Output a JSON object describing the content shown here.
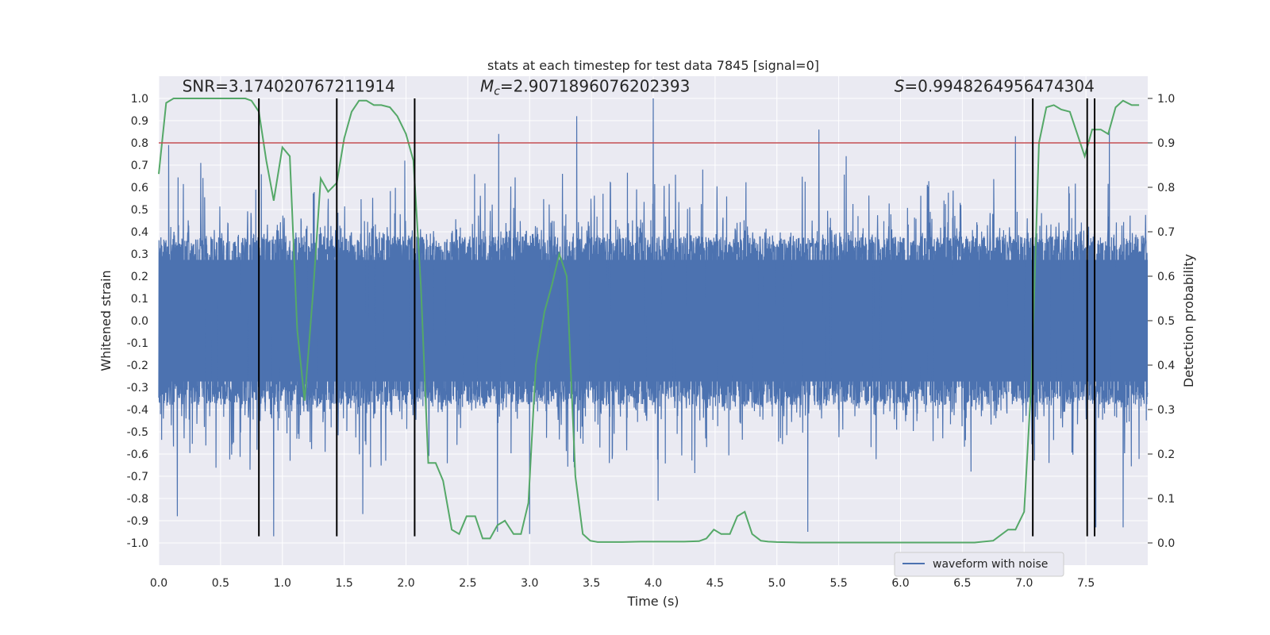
{
  "chart_data": {
    "type": "line",
    "title": "stats at each timestep for test data 7845 [signal=0]",
    "xlabel": "Time (s)",
    "ylabel": "Whitened strain",
    "y2label": "Detection probability",
    "xlim": [
      0,
      8
    ],
    "ylim": [
      -1.1,
      1.1
    ],
    "y2lim": [
      -0.05,
      1.05
    ],
    "xticks": [
      0.0,
      0.5,
      1.0,
      1.5,
      2.0,
      2.5,
      3.0,
      3.5,
      4.0,
      4.5,
      5.0,
      5.5,
      6.0,
      6.5,
      7.0,
      7.5
    ],
    "yticks": [
      -1.0,
      -0.9,
      -0.8,
      -0.7,
      -0.6,
      -0.5,
      -0.4,
      -0.3,
      -0.2,
      -0.1,
      0.0,
      0.1,
      0.2,
      0.3,
      0.4,
      0.5,
      0.6,
      0.7,
      0.8,
      0.9,
      1.0
    ],
    "y2ticks": [
      0.0,
      0.1,
      0.2,
      0.3,
      0.4,
      0.5,
      0.6,
      0.7,
      0.8,
      0.9,
      1.0
    ],
    "grid": true,
    "legend": {
      "placement": "lower-right",
      "entries": [
        "waveform with noise"
      ]
    },
    "annotations": [
      {
        "kind": "plain",
        "text": "SNR=3.174020767211914",
        "x": 0.19,
        "y": 1.03
      },
      {
        "kind": "mc",
        "prefix": "M",
        "sub": "c",
        "suffix": "=2.9071896076202393",
        "x": 2.6,
        "y": 1.03
      },
      {
        "kind": "s",
        "prefix": "S",
        "suffix": "=0.9948264956474304",
        "x": 5.95,
        "y": 1.03
      }
    ],
    "threshold": {
      "y2": 0.9,
      "color": "#c44e52"
    },
    "vlines": {
      "x": [
        0.81,
        1.44,
        2.07,
        7.07,
        7.51,
        7.57
      ],
      "y_range": [
        -0.97,
        1.0
      ],
      "color": "#000000"
    },
    "series": [
      {
        "name": "waveform with noise",
        "axis": "left",
        "color": "#4c72b0",
        "generated_noise": {
          "samples": 4096,
          "band": 0.38,
          "peak_max": 1.0,
          "seed": 7845
        },
        "peaks": [
          [
            0.08,
            0.79
          ],
          [
            0.34,
            0.71
          ],
          [
            1.99,
            0.72
          ],
          [
            2.75,
            0.84
          ],
          [
            3.38,
            0.92
          ],
          [
            4.0,
            1.0
          ],
          [
            4.4,
            0.68
          ],
          [
            5.34,
            0.86
          ],
          [
            5.56,
            0.74
          ],
          [
            6.93,
            0.83
          ],
          [
            7.69,
            0.86
          ],
          [
            0.15,
            -0.88
          ],
          [
            0.93,
            -0.97
          ],
          [
            1.65,
            -0.87
          ],
          [
            2.74,
            -0.95
          ],
          [
            3.0,
            -0.96
          ],
          [
            4.04,
            -0.81
          ],
          [
            5.25,
            -0.95
          ],
          [
            7.58,
            -0.93
          ],
          [
            7.8,
            -0.93
          ]
        ]
      },
      {
        "name": "",
        "axis": "right",
        "color": "#55a868",
        "x": [
          0.0,
          0.06,
          0.12,
          0.25,
          0.4,
          0.55,
          0.7,
          0.75,
          0.81,
          0.87,
          0.93,
          1.0,
          1.06,
          1.12,
          1.18,
          1.25,
          1.31,
          1.37,
          1.44,
          1.5,
          1.56,
          1.62,
          1.68,
          1.74,
          1.8,
          1.87,
          1.93,
          2.0,
          2.06,
          2.12,
          2.18,
          2.24,
          2.3,
          2.37,
          2.43,
          2.49,
          2.56,
          2.62,
          2.68,
          2.74,
          2.8,
          2.87,
          2.93,
          2.99,
          3.05,
          3.12,
          3.18,
          3.24,
          3.3,
          3.37,
          3.43,
          3.49,
          3.55,
          3.62,
          3.75,
          3.9,
          4.05,
          4.25,
          4.37,
          4.43,
          4.49,
          4.55,
          4.62,
          4.68,
          4.74,
          4.8,
          4.87,
          4.93,
          5.0,
          5.2,
          5.5,
          6.0,
          6.3,
          6.6,
          6.75,
          6.87,
          6.93,
          7.0,
          7.06,
          7.12,
          7.18,
          7.24,
          7.3,
          7.37,
          7.43,
          7.49,
          7.55,
          7.62,
          7.68,
          7.74,
          7.8,
          7.87,
          7.93
        ],
        "y": [
          0.83,
          0.99,
          1.0,
          1.0,
          1.0,
          1.0,
          1.0,
          0.995,
          0.97,
          0.86,
          0.77,
          0.89,
          0.87,
          0.48,
          0.32,
          0.57,
          0.82,
          0.79,
          0.81,
          0.91,
          0.97,
          0.995,
          0.995,
          0.985,
          0.985,
          0.98,
          0.96,
          0.92,
          0.86,
          0.58,
          0.18,
          0.18,
          0.14,
          0.03,
          0.02,
          0.06,
          0.06,
          0.01,
          0.01,
          0.04,
          0.05,
          0.02,
          0.02,
          0.09,
          0.4,
          0.52,
          0.58,
          0.65,
          0.6,
          0.15,
          0.02,
          0.005,
          0.002,
          0.002,
          0.002,
          0.003,
          0.003,
          0.003,
          0.004,
          0.01,
          0.03,
          0.02,
          0.02,
          0.06,
          0.07,
          0.02,
          0.005,
          0.003,
          0.002,
          0.001,
          0.001,
          0.001,
          0.001,
          0.001,
          0.005,
          0.03,
          0.03,
          0.07,
          0.37,
          0.9,
          0.98,
          0.985,
          0.975,
          0.97,
          0.92,
          0.87,
          0.93,
          0.93,
          0.92,
          0.98,
          0.995,
          0.985,
          0.985
        ]
      }
    ]
  }
}
